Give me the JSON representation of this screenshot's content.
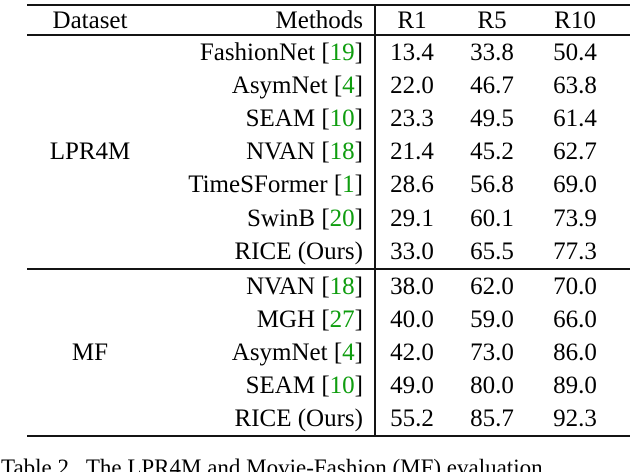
{
  "colors": {
    "citation_green": "#0f9d0f",
    "rule": "#141414",
    "text": "#000000"
  },
  "table": {
    "headers": {
      "dataset": "Dataset",
      "methods": "Methods",
      "r1": "R1",
      "r5": "R5",
      "r10": "R10"
    },
    "rows": [
      {
        "dataset": "",
        "pre": "FashionNet [",
        "cite": "19",
        "post": "]",
        "r1": "13.4",
        "r5": "33.8",
        "r10": "50.4"
      },
      {
        "dataset": "",
        "pre": "AsymNet [",
        "cite": "4",
        "post": "]",
        "r1": "22.0",
        "r5": "46.7",
        "r10": "63.8"
      },
      {
        "dataset": "",
        "pre": "SEAM [",
        "cite": "10",
        "post": "]",
        "r1": "23.3",
        "r5": "49.5",
        "r10": "61.4"
      },
      {
        "dataset": "LPR4M",
        "pre": "NVAN [",
        "cite": "18",
        "post": "]",
        "r1": "21.4",
        "r5": "45.2",
        "r10": "62.7"
      },
      {
        "dataset": "",
        "pre": "TimeSFormer [",
        "cite": "1",
        "post": "]",
        "r1": "28.6",
        "r5": "56.8",
        "r10": "69.0"
      },
      {
        "dataset": "",
        "pre": "SwinB [",
        "cite": "20",
        "post": "]",
        "r1": "29.1",
        "r5": "60.1",
        "r10": "73.9"
      },
      {
        "dataset": "",
        "pre": "RICE (Ours)",
        "cite": "",
        "post": "",
        "r1": "33.0",
        "r5": "65.5",
        "r10": "77.3"
      },
      {
        "dataset": "",
        "pre": "NVAN [",
        "cite": "18",
        "post": "]",
        "r1": "38.0",
        "r5": "62.0",
        "r10": "70.0"
      },
      {
        "dataset": "",
        "pre": "MGH [",
        "cite": "27",
        "post": "]",
        "r1": "40.0",
        "r5": "59.0",
        "r10": "66.0"
      },
      {
        "dataset": "MF",
        "pre": "AsymNet [",
        "cite": "4",
        "post": "]",
        "r1": "42.0",
        "r5": "73.0",
        "r10": "86.0"
      },
      {
        "dataset": "",
        "pre": "SEAM [",
        "cite": "10",
        "post": "]",
        "r1": "49.0",
        "r5": "80.0",
        "r10": "89.0"
      },
      {
        "dataset": "",
        "pre": "RICE (Ours)",
        "cite": "",
        "post": "",
        "r1": "55.2",
        "r5": "85.7",
        "r10": "92.3"
      }
    ]
  },
  "caption": {
    "text": "Table 2.  The LPR4M and Movie-Fashion (MF) evaluation"
  }
}
